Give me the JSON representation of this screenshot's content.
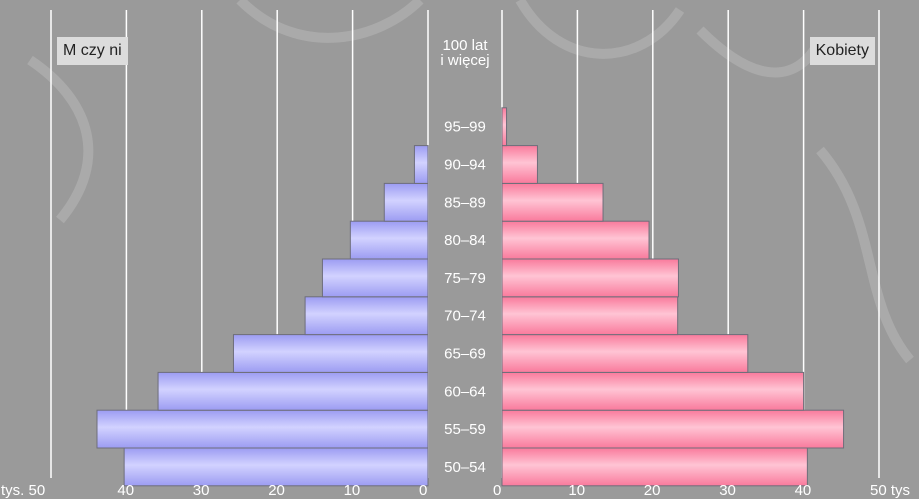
{
  "chart_data": {
    "type": "bar",
    "subtype": "population-pyramid",
    "categories": [
      "50–54",
      "55–59",
      "60–64",
      "65–69",
      "70–74",
      "75–79",
      "80–84",
      "85–89",
      "90–94",
      "95–99",
      "100 lat\ni więcej"
    ],
    "top_category_lines": [
      "100 lat",
      "i więcej"
    ],
    "series": [
      {
        "name": "M czy ni",
        "side": "left",
        "color": "#b3b3ff",
        "values": [
          40.3,
          43.9,
          35.8,
          25.8,
          16.3,
          14.0,
          10.3,
          5.8,
          1.8,
          0.0,
          0.0
        ]
      },
      {
        "name": "Kobiety",
        "side": "right",
        "color": "#ff99b4",
        "values": [
          40.5,
          45.3,
          40.0,
          32.6,
          23.3,
          23.4,
          19.5,
          13.4,
          4.7,
          0.6,
          0.0
        ]
      }
    ],
    "left_axis": {
      "ticks": [
        "tys. 50",
        "40",
        "30",
        "20",
        "10",
        "0"
      ],
      "tick_values": [
        50,
        40,
        30,
        20,
        10,
        0
      ]
    },
    "right_axis": {
      "ticks": [
        "0",
        "10",
        "20",
        "30",
        "40",
        "50 tys"
      ],
      "tick_values": [
        0,
        10,
        20,
        30,
        40,
        50
      ]
    },
    "xlim": [
      0,
      50
    ],
    "grid": true,
    "legend": {
      "left_label": "M czy ni",
      "right_label": "Kobiety"
    }
  }
}
